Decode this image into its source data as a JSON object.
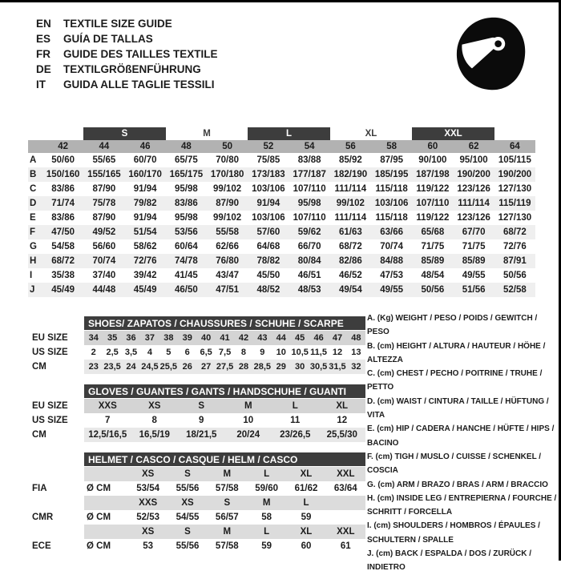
{
  "languages": [
    {
      "code": "EN",
      "text": "TEXTILE SIZE GUIDE"
    },
    {
      "code": "ES",
      "text": "GUÍA DE TALLAS"
    },
    {
      "code": "FR",
      "text": "GUIDE DES TAILLES TEXTILE"
    },
    {
      "code": "DE",
      "text": "TEXTILGRÖßENFÜHRUNG"
    },
    {
      "code": "IT",
      "text": "GUIDA ALLE TAGLIE TESSILI"
    }
  ],
  "icons": {
    "helmet": "helmet-icon"
  },
  "colors": {
    "bar_dark": "#3d3d3d",
    "size_row_gray": "#b2b2b2",
    "alt_row": "#efefef",
    "band_gray": "#d4d4d4",
    "band_light": "#e8e8e8",
    "band_helmet": "#dcdcdc"
  },
  "main_table": {
    "size_groups": [
      {
        "label": "S"
      },
      {
        "label": "M"
      },
      {
        "label": "L"
      },
      {
        "label": "XL"
      },
      {
        "label": "XXL"
      }
    ],
    "sizes": [
      "42",
      "44",
      "46",
      "48",
      "50",
      "52",
      "54",
      "56",
      "58",
      "60",
      "62",
      "64"
    ],
    "rows": [
      {
        "letter": "A",
        "values": [
          "50/60",
          "55/65",
          "60/70",
          "65/75",
          "70/80",
          "75/85",
          "83/88",
          "85/92",
          "87/95",
          "90/100",
          "95/100",
          "105/115"
        ]
      },
      {
        "letter": "B",
        "values": [
          "150/160",
          "155/165",
          "160/170",
          "165/175",
          "170/180",
          "173/183",
          "177/187",
          "182/190",
          "185/195",
          "187/198",
          "190/200",
          "190/200"
        ]
      },
      {
        "letter": "C",
        "values": [
          "83/86",
          "87/90",
          "91/94",
          "95/98",
          "99/102",
          "103/106",
          "107/110",
          "111/114",
          "115/118",
          "119/122",
          "123/126",
          "127/130"
        ]
      },
      {
        "letter": "D",
        "values": [
          "71/74",
          "75/78",
          "79/82",
          "83/86",
          "87/90",
          "91/94",
          "95/98",
          "99/102",
          "103/106",
          "107/110",
          "111/114",
          "115/119"
        ]
      },
      {
        "letter": "E",
        "values": [
          "83/86",
          "87/90",
          "91/94",
          "95/98",
          "99/102",
          "103/106",
          "107/110",
          "111/114",
          "115/118",
          "119/122",
          "123/126",
          "127/130"
        ]
      },
      {
        "letter": "F",
        "values": [
          "47/50",
          "49/52",
          "51/54",
          "53/56",
          "55/58",
          "57/60",
          "59/62",
          "61/63",
          "63/66",
          "65/68",
          "67/70",
          "68/72"
        ]
      },
      {
        "letter": "G",
        "values": [
          "54/58",
          "56/60",
          "58/62",
          "60/64",
          "62/66",
          "64/68",
          "66/70",
          "68/72",
          "70/74",
          "71/75",
          "71/75",
          "72/76"
        ]
      },
      {
        "letter": "H",
        "values": [
          "68/72",
          "70/74",
          "72/76",
          "74/78",
          "76/80",
          "78/82",
          "80/84",
          "82/86",
          "84/88",
          "85/89",
          "85/89",
          "87/91"
        ]
      },
      {
        "letter": "I",
        "values": [
          "35/38",
          "37/40",
          "39/42",
          "41/45",
          "43/47",
          "45/50",
          "46/51",
          "46/52",
          "47/53",
          "48/54",
          "49/55",
          "50/56"
        ]
      },
      {
        "letter": "J",
        "values": [
          "45/49",
          "44/48",
          "45/49",
          "46/50",
          "47/51",
          "48/52",
          "48/53",
          "49/54",
          "49/55",
          "50/56",
          "51/56",
          "52/58"
        ]
      }
    ]
  },
  "shoes": {
    "title": "SHOES/ ZAPATOS / CHAUSSURES / SCHUHE / SCARPE",
    "eu_label": "EU SIZE",
    "us_label": "US SIZE",
    "cm_label": "CM",
    "eu": [
      "34",
      "35",
      "36",
      "37",
      "38",
      "39",
      "40",
      "41",
      "42",
      "43",
      "44",
      "45",
      "46",
      "47",
      "48"
    ],
    "us": [
      "2",
      "2,5",
      "3,5",
      "4",
      "5",
      "6",
      "6,5",
      "7,5",
      "8",
      "9",
      "10",
      "10,5",
      "11,5",
      "12",
      "13"
    ],
    "cm": [
      "23",
      "23,5",
      "24",
      "24,5",
      "25,5",
      "26",
      "27",
      "27,5",
      "28",
      "28,5",
      "29",
      "30",
      "30,5",
      "31,5",
      "32"
    ]
  },
  "gloves": {
    "title": "GLOVES / GUANTES / GANTS / HANDSCHUHE / GUANTI",
    "eu_label": "EU SIZE",
    "us_label": "US SIZE",
    "cm_label": "CM",
    "eu": [
      "XXS",
      "XS",
      "S",
      "M",
      "L",
      "XL"
    ],
    "us": [
      "7",
      "8",
      "9",
      "10",
      "11",
      "12"
    ],
    "cm": [
      "12,5/16,5",
      "16,5/19",
      "18/21,5",
      "20/24",
      "23/26,5",
      "25,5/30"
    ]
  },
  "helmet": {
    "title": "HELMET / CASCO / CASQUE / HELM / CASCO",
    "groups": [
      {
        "label": "FIA",
        "unit": "Ø CM",
        "sizes": [
          "XS",
          "S",
          "M",
          "L",
          "XL",
          "XXL"
        ],
        "values": [
          "53/54",
          "55/56",
          "57/58",
          "59/60",
          "61/62",
          "63/64"
        ]
      },
      {
        "label": "CMR",
        "unit": "Ø CM",
        "sizes": [
          "XXS",
          "XS",
          "S",
          "M",
          "L",
          ""
        ],
        "values": [
          "52/53",
          "54/55",
          "56/57",
          "58",
          "59",
          ""
        ]
      },
      {
        "label": "ECE",
        "unit": "Ø CM",
        "sizes": [
          "XS",
          "S",
          "M",
          "L",
          "XL",
          "XXL"
        ],
        "values": [
          "53",
          "55/56",
          "57/58",
          "59",
          "60",
          "61"
        ]
      }
    ]
  },
  "legend": [
    "A. (Kg) WEIGHT / PESO / POIDS / GEWITCH / PESO",
    "B. (cm) HEIGHT / ALTURA / HAUTEUR / HÖHE / ALTEZZA",
    "C. (cm) CHEST / PECHO / POITRINE / TRUHE / PETTO",
    "D. (cm) WAIST / CINTURA / TAILLE / HÜFTUNG / VITA",
    "E. (cm) HIP / CADERA / HANCHE / HÜFTE / HIPS / BACINO",
    "F. (cm) TIGH / MUSLO / CUISSE / SCHENKEL / COSCIA",
    "G. (cm) ARM / BRAZO / BRAS / ARM / BRACCIO",
    "H. (cm) INSIDE LEG / ENTREPIERNA / FOURCHE / SCHRITT / FORCELLA",
    "I. (cm) SHOULDERS / HOMBROS / ÉPAULES / SCHULTERN / SPALLE",
    "J. (cm) BACK / ESPALDA / DOS / ZURÜCK / INDIETRO"
  ]
}
